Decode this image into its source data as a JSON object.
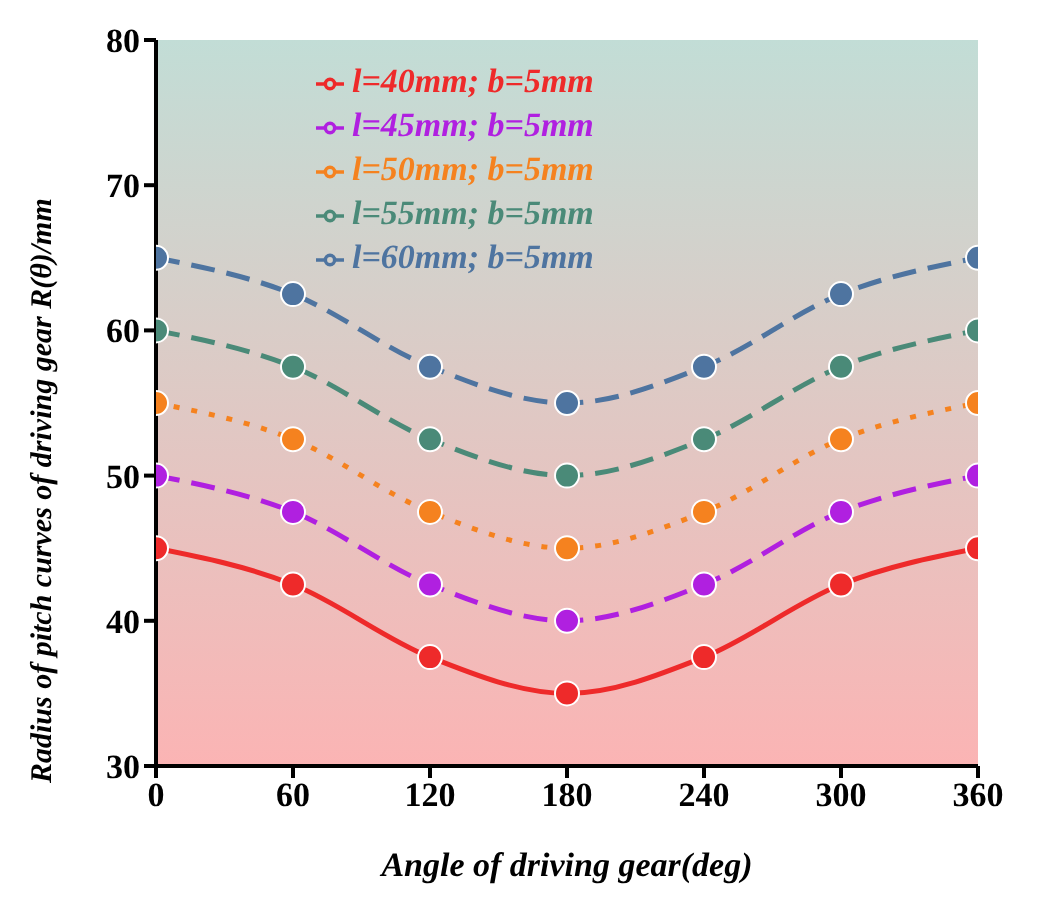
{
  "chart_data": {
    "type": "line",
    "xlabel": "Angle of driving gear(deg)",
    "ylabel": "Radius of pitch curves of driving gear R(θ)/mm",
    "x": [
      0,
      60,
      120,
      180,
      240,
      300,
      360
    ],
    "series": [
      {
        "name": "l=40mm; b=5mm",
        "color": "#ee2a2a",
        "line_style": "solid",
        "values": [
          45,
          42.5,
          37.5,
          35,
          37.5,
          42.5,
          45
        ]
      },
      {
        "name": "l=45mm; b=5mm",
        "color": "#b020e0",
        "line_style": "dashed",
        "values": [
          50,
          47.5,
          42.5,
          40,
          42.5,
          47.5,
          50
        ]
      },
      {
        "name": "l=50mm; b=5mm",
        "color": "#f5821f",
        "line_style": "dotted",
        "values": [
          55,
          52.5,
          47.5,
          45,
          47.5,
          52.5,
          55
        ]
      },
      {
        "name": "l=55mm; b=5mm",
        "color": "#4a8a78",
        "line_style": "dashed",
        "values": [
          60,
          57.5,
          52.5,
          50,
          52.5,
          57.5,
          60
        ]
      },
      {
        "name": "l=60mm; b=5mm",
        "color": "#4e74a0",
        "line_style": "dashed",
        "values": [
          65,
          62.5,
          57.5,
          55,
          57.5,
          62.5,
          65
        ]
      }
    ],
    "xlim": [
      0,
      360
    ],
    "xticks": [
      0,
      60,
      120,
      180,
      240,
      300,
      360
    ],
    "ylim": [
      30,
      80
    ],
    "yticks": [
      30,
      40,
      50,
      60,
      70,
      80
    ],
    "grid": false,
    "legend": "top",
    "marker": "circle"
  }
}
